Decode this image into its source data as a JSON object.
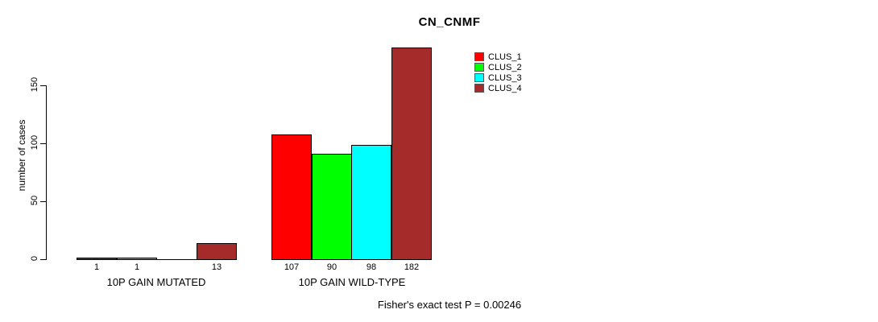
{
  "chart_data": {
    "type": "bar",
    "title": "CN_CNMF",
    "ylabel": "number of cases",
    "yticks": [
      0,
      50,
      100,
      150
    ],
    "ylim": [
      0,
      182
    ],
    "grid": false,
    "legend_position": "top-right",
    "categories": [
      "10P GAIN MUTATED",
      "10P GAIN WILD-TYPE"
    ],
    "series": [
      {
        "name": "CLUS_1",
        "color": "#FF0000",
        "values": [
          1,
          107
        ]
      },
      {
        "name": "CLUS_2",
        "color": "#00FF00",
        "values": [
          1,
          90
        ]
      },
      {
        "name": "CLUS_3",
        "color": "#00FFFF",
        "values": [
          0,
          98
        ]
      },
      {
        "name": "CLUS_4",
        "color": "#A52A2A",
        "values": [
          13,
          182
        ]
      }
    ],
    "bar_value_labels": [
      [
        "1",
        "1",
        "",
        "13"
      ],
      [
        "107",
        "90",
        "98",
        "182"
      ]
    ],
    "annotation": "Fisher's exact test P = 0.00246",
    "bar_border_color": "#000000",
    "axis_color": "#000000"
  }
}
